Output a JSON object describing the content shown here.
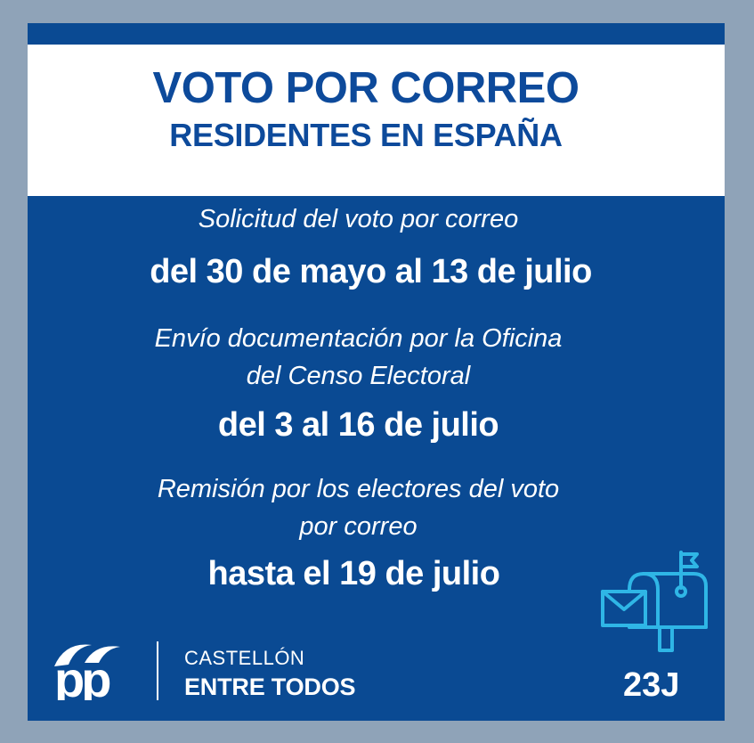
{
  "header": {
    "title": "VOTO POR CORREO",
    "subtitle": "RESIDENTES EN ESPAÑA"
  },
  "steps": [
    {
      "label_lines": [
        "Solicitud del voto por correo"
      ],
      "date": "del 30 de mayo al 13 de julio"
    },
    {
      "label_lines": [
        "Envío documentación por la Oficina",
        "del Censo Electoral"
      ],
      "date": "del 3 al 16 de julio"
    },
    {
      "label_lines": [
        "Remisión por los electores del voto",
        "por correo"
      ],
      "date": "hasta el 19 de julio"
    }
  ],
  "footer": {
    "logo_text": "pp",
    "location": "CASTELLÓN",
    "slogan": "ENTRE TODOS",
    "tag": "23J"
  },
  "colors": {
    "background": "#8fa3b8",
    "card": "#0a4a93",
    "header_text": "#0d4a9b",
    "icon": "#2fb6e6"
  },
  "icons": [
    "mailbox-icon",
    "envelope-icon",
    "flag-icon"
  ]
}
